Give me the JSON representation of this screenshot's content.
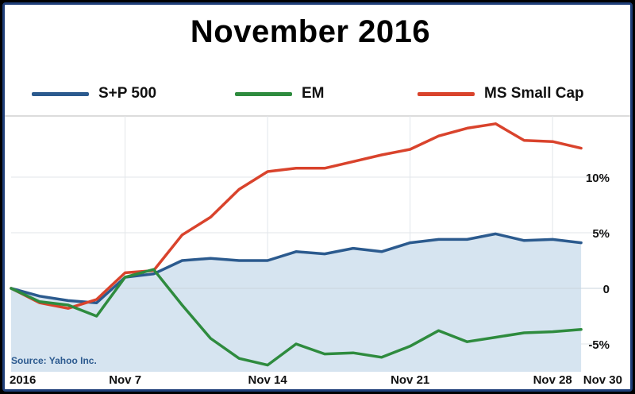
{
  "chart_data": {
    "type": "line",
    "title": "November 2016",
    "x_ticks": [
      "2016",
      "Nov 7",
      "Nov 14",
      "Nov 21",
      "Nov 28",
      "Nov 30"
    ],
    "y_ticks": [
      "10%",
      "5%",
      "0",
      "-5%"
    ],
    "ylim": [
      -7.5,
      15.5
    ],
    "grid": true,
    "legend_position": "top",
    "source": "Source: Yahoo Inc.",
    "series": [
      {
        "name": "S+P 500",
        "color": "#2b5a8e",
        "fill": "#d6e4f0",
        "x": [
          0,
          1,
          2,
          3,
          4,
          5,
          6,
          7,
          8,
          9,
          10,
          11,
          12,
          13,
          14,
          15,
          16,
          17,
          18,
          19,
          20,
          21
        ],
        "values": [
          0,
          -0.7,
          -1.1,
          -1.3,
          1.0,
          1.3,
          2.5,
          2.7,
          2.5,
          2.5,
          3.3,
          3.1,
          3.6,
          3.3,
          4.1,
          4.4,
          4.4,
          4.9,
          4.3,
          4.4,
          4.1,
          null
        ]
      },
      {
        "name": "EM",
        "color": "#2e8b3e",
        "x": [
          0,
          1,
          2,
          3,
          4,
          5,
          6,
          7,
          8,
          9,
          10,
          11,
          12,
          13,
          14,
          15,
          16,
          17,
          18,
          19,
          20,
          21
        ],
        "values": [
          0,
          -1.2,
          -1.5,
          -2.5,
          1.0,
          1.7,
          -1.5,
          -4.5,
          -6.3,
          -6.9,
          -5.0,
          -5.9,
          -5.8,
          -6.2,
          -5.2,
          -3.8,
          -4.8,
          -4.4,
          -4.0,
          -3.9,
          -3.7,
          null
        ]
      },
      {
        "name": "MS Small Cap",
        "color": "#d9432c",
        "x": [
          0,
          1,
          2,
          3,
          4,
          5,
          6,
          7,
          8,
          9,
          10,
          11,
          12,
          13,
          14,
          15,
          16,
          17,
          18,
          19,
          20,
          21
        ],
        "values": [
          0,
          -1.3,
          -1.8,
          -1.0,
          1.4,
          1.6,
          4.8,
          6.4,
          8.9,
          10.5,
          10.8,
          10.8,
          11.4,
          12.0,
          12.5,
          13.7,
          14.4,
          14.8,
          13.3,
          13.2,
          12.6,
          null
        ]
      }
    ]
  }
}
